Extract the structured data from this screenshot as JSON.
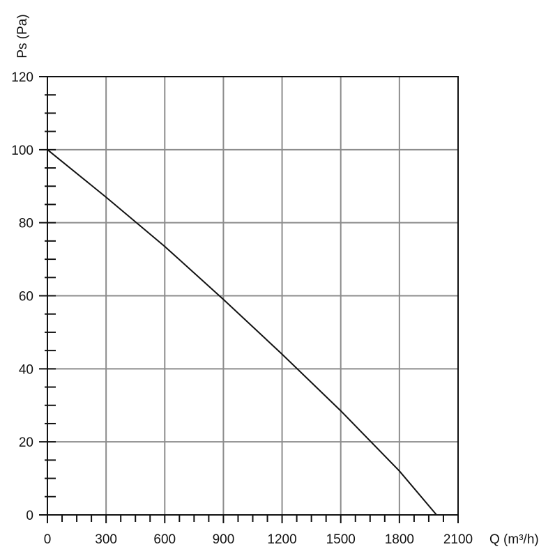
{
  "chart_data": {
    "type": "line",
    "title": "",
    "xlabel": "Q (m³/h)",
    "ylabel": "Ps (Pa)",
    "xlim": [
      0,
      2100
    ],
    "ylim": [
      0,
      120
    ],
    "x_ticks": [
      0,
      300,
      600,
      900,
      1200,
      1500,
      1800,
      2100
    ],
    "y_ticks": [
      0,
      20,
      40,
      60,
      80,
      100,
      120
    ],
    "x_tick_labels": [
      "0",
      "300",
      "600",
      "900",
      "1200",
      "1500",
      "1800",
      "2100"
    ],
    "y_tick_labels": [
      "0",
      "20",
      "40",
      "60",
      "80",
      "100",
      "120"
    ],
    "x_minor_step": 75,
    "y_minor_step": 5,
    "grid": true,
    "legend": "none",
    "colors": {
      "line": "#111111",
      "grid": "#8c8c8c",
      "frame": "#111111",
      "background": "#ffffff"
    },
    "series": [
      {
        "x": [
          0,
          300,
          600,
          900,
          1200,
          1500,
          1800,
          1990
        ],
        "y": [
          100,
          87,
          73.5,
          59,
          44,
          28.5,
          12,
          0
        ]
      }
    ]
  }
}
